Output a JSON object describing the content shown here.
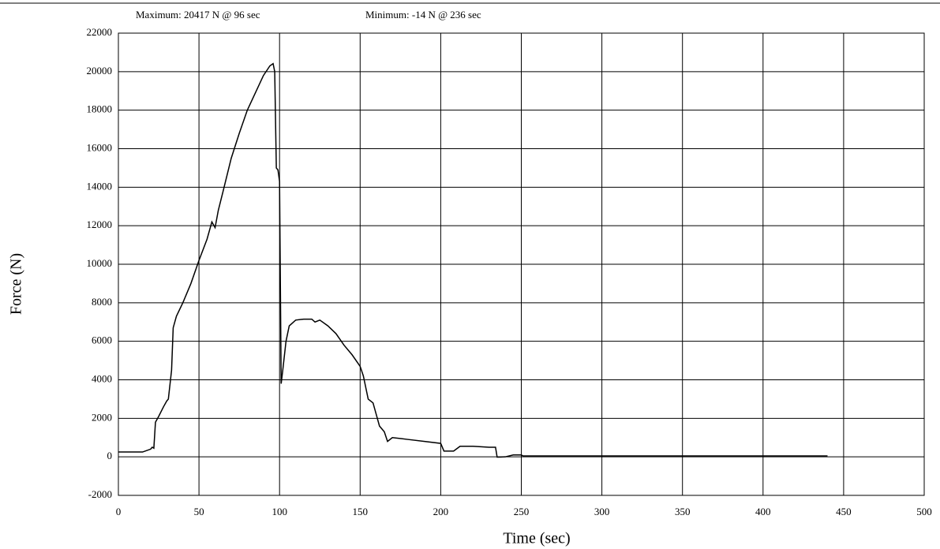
{
  "chart_data": {
    "type": "line",
    "annotations": [
      "Maximum: 20417 N @ 96 sec",
      "Minimum: -14 N @ 236 sec"
    ],
    "x_label": "Time (sec)",
    "y_label": "Force (N)",
    "xlim": [
      0,
      500
    ],
    "xticks": [
      0,
      50,
      100,
      150,
      200,
      250,
      300,
      350,
      400,
      450,
      500
    ],
    "ylim": [
      -2000,
      22000
    ],
    "yticks": [
      -2000,
      0,
      2000,
      4000,
      6000,
      8000,
      10000,
      12000,
      14000,
      16000,
      18000,
      20000,
      22000
    ],
    "grid": true,
    "series": [
      {
        "color": "#000000",
        "x": [
          0,
          15,
          20,
          21,
          22,
          23,
          25,
          28,
          30,
          31,
          33,
          34,
          36,
          40,
          45,
          50,
          55,
          58,
          60,
          62,
          65,
          70,
          75,
          80,
          85,
          90,
          94,
          96,
          97,
          98,
          99,
          100,
          101,
          102,
          104,
          106,
          110,
          115,
          120,
          122,
          125,
          130,
          135,
          140,
          145,
          150,
          152,
          155,
          158,
          160,
          162,
          165,
          167,
          170,
          180,
          190,
          200,
          202,
          208,
          212,
          220,
          230,
          234,
          235,
          236,
          240,
          245,
          250,
          251,
          300,
          400,
          440
        ],
        "values": [
          250,
          250,
          400,
          500,
          450,
          1800,
          2100,
          2600,
          2900,
          3000,
          4500,
          6700,
          7300,
          8000,
          9000,
          10200,
          11300,
          12200,
          11900,
          12800,
          13800,
          15500,
          16800,
          18000,
          18900,
          19800,
          20300,
          20417,
          20000,
          15000,
          14900,
          14300,
          3800,
          4500,
          6000,
          6800,
          7100,
          7150,
          7150,
          7000,
          7100,
          6800,
          6400,
          5800,
          5300,
          4700,
          4200,
          3000,
          2800,
          2200,
          1600,
          1300,
          800,
          1000,
          900,
          800,
          700,
          300,
          300,
          550,
          550,
          500,
          500,
          -14,
          -14,
          0,
          100,
          100,
          50,
          50,
          50,
          50
        ]
      }
    ]
  }
}
